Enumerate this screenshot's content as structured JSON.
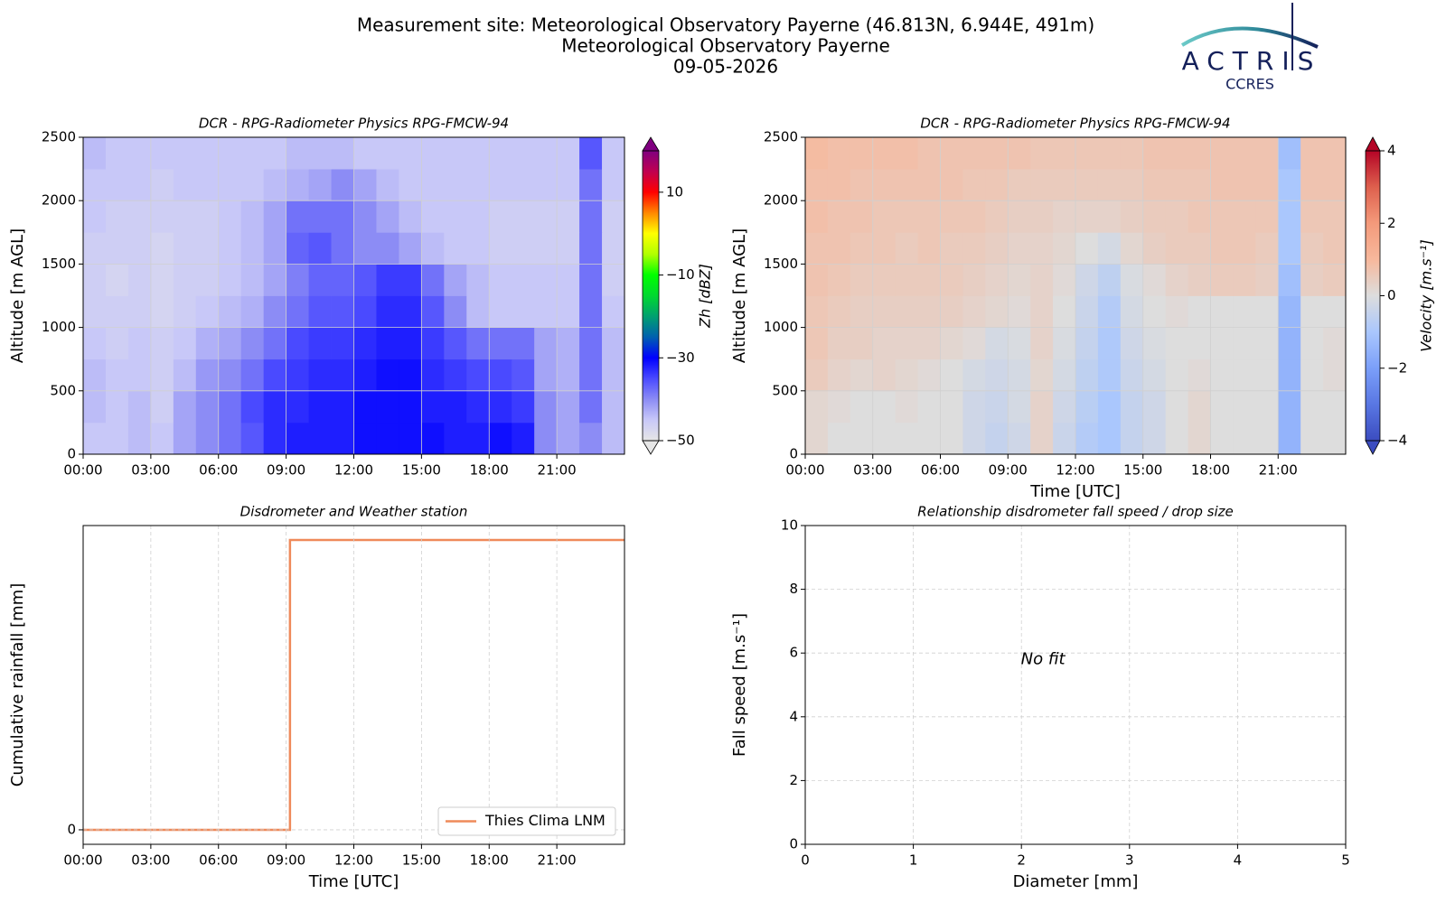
{
  "header": {
    "title": [
      "Measurement site: Meteorological Observatory Payerne (46.813N, 6.944E, 491m)",
      "Meteorological Observatory Payerne",
      "09-05-2026"
    ],
    "logo": "ACTRIS",
    "logo_subtitle": "CCRES"
  },
  "chart_data": [
    {
      "type": "heatmap",
      "title": "DCR - RPG-Radiometer Physics RPG-FMCW-94",
      "ylabel": "Altitude [m AGL]",
      "xlim": [
        0,
        24
      ],
      "xticks": [
        {
          "value": 0,
          "label": "00:00"
        },
        {
          "value": 3,
          "label": "03:00"
        },
        {
          "value": 6,
          "label": "06:00"
        },
        {
          "value": 9,
          "label": "09:00"
        },
        {
          "value": 12,
          "label": "12:00"
        },
        {
          "value": 15,
          "label": "15:00"
        },
        {
          "value": 18,
          "label": "18:00"
        },
        {
          "value": 21,
          "label": "21:00"
        }
      ],
      "ylim": [
        0,
        2500
      ],
      "yticks": [
        0,
        500,
        1000,
        1500,
        2000,
        2500
      ],
      "grid": true,
      "grid_style": "solid",
      "xbins": [
        0,
        1,
        2,
        3,
        4,
        5,
        6,
        7,
        8,
        9,
        10,
        11,
        12,
        13,
        14,
        15,
        16,
        17,
        18,
        19,
        20,
        21,
        22,
        23,
        24
      ],
      "ybins": [
        0,
        250,
        500,
        750,
        1000,
        1250,
        1500,
        1750,
        2000,
        2250,
        2500
      ],
      "z": [
        [
          -45,
          -45,
          -44,
          -45,
          -42,
          -40,
          -38,
          -36,
          -33,
          -32,
          -32,
          -32,
          -31,
          -31,
          -31,
          -31,
          -32,
          -32,
          -31,
          -32,
          -40,
          -42,
          -40,
          -44
        ],
        [
          -44,
          -45,
          -44,
          -46,
          -42,
          -40,
          -38,
          -35,
          -33,
          -33,
          -32,
          -32,
          -31,
          -31,
          -31,
          -32,
          -32,
          -33,
          -33,
          -34,
          -40,
          -42,
          -38,
          -44
        ],
        [
          -44,
          -45,
          -45,
          -46,
          -44,
          -41,
          -40,
          -38,
          -35,
          -34,
          -33,
          -33,
          -32,
          -31,
          -31,
          -33,
          -34,
          -35,
          -35,
          -36,
          -42,
          -43,
          -38,
          -44
        ],
        [
          -45,
          -46,
          -45,
          -46,
          -45,
          -43,
          -42,
          -40,
          -38,
          -35,
          -34,
          -34,
          -33,
          -32,
          -32,
          -34,
          -36,
          -38,
          -38,
          -38,
          -42,
          -43,
          -38,
          -44
        ],
        [
          -46,
          -46,
          -46,
          -47,
          -46,
          -45,
          -44,
          -43,
          -40,
          -38,
          -36,
          -36,
          -35,
          -33,
          -33,
          -36,
          -40,
          -44,
          -45,
          -45,
          -45,
          -45,
          -38,
          -45
        ],
        [
          -46,
          -47,
          -46,
          -47,
          -46,
          -46,
          -45,
          -44,
          -42,
          -39,
          -37,
          -37,
          -36,
          -34,
          -34,
          -38,
          -42,
          -44,
          -45,
          -45,
          -45,
          -45,
          -38,
          -46
        ],
        [
          -46,
          -46,
          -46,
          -47,
          -46,
          -46,
          -45,
          -44,
          -42,
          -37,
          -36,
          -38,
          -40,
          -40,
          -42,
          -44,
          -45,
          -45,
          -46,
          -46,
          -46,
          -46,
          -38,
          -46
        ],
        [
          -45,
          -46,
          -46,
          -46,
          -46,
          -46,
          -45,
          -44,
          -42,
          -38,
          -38,
          -38,
          -40,
          -42,
          -44,
          -45,
          -45,
          -45,
          -46,
          -46,
          -46,
          -46,
          -38,
          -46
        ],
        [
          -45,
          -45,
          -45,
          -46,
          -45,
          -45,
          -45,
          -45,
          -44,
          -43,
          -42,
          -40,
          -42,
          -44,
          -45,
          -45,
          -45,
          -45,
          -45,
          -45,
          -45,
          -45,
          -38,
          -45
        ],
        [
          -44,
          -45,
          -45,
          -45,
          -45,
          -45,
          -45,
          -45,
          -45,
          -44,
          -44,
          -44,
          -45,
          -45,
          -45,
          -45,
          -45,
          -45,
          -45,
          -45,
          -45,
          -45,
          -36,
          -45
        ]
      ],
      "colorbar_label": "Zh [dBZ]",
      "clim": [
        -50,
        20
      ],
      "extend": "both",
      "cticks": [
        {
          "value": 10,
          "label": "10"
        },
        {
          "value": -10,
          "label": "−10"
        },
        {
          "value": -30,
          "label": "−30"
        },
        {
          "value": -50,
          "label": "−50"
        }
      ],
      "colormap": [
        "#e6e6e6",
        "#c8c8f8",
        "#8c8cf5",
        "#4a4aff",
        "#0000ff",
        "#0060b0",
        "#00a070",
        "#00d830",
        "#00ff00",
        "#b0ff00",
        "#ffff00",
        "#ff8800",
        "#ff0000",
        "#c00050",
        "#800080"
      ]
    },
    {
      "type": "heatmap",
      "title": "DCR - RPG-Radiometer Physics RPG-FMCW-94",
      "ylabel": "Altitude [m AGL]",
      "xlabel": "Time [UTC]",
      "xlim": [
        0,
        24
      ],
      "xticks": [
        {
          "value": 0,
          "label": "00:00"
        },
        {
          "value": 3,
          "label": "03:00"
        },
        {
          "value": 6,
          "label": "06:00"
        },
        {
          "value": 9,
          "label": "09:00"
        },
        {
          "value": 12,
          "label": "12:00"
        },
        {
          "value": 15,
          "label": "15:00"
        },
        {
          "value": 18,
          "label": "18:00"
        },
        {
          "value": 21,
          "label": "21:00"
        }
      ],
      "ylim": [
        0,
        2500
      ],
      "yticks": [
        0,
        500,
        1000,
        1500,
        2000,
        2500
      ],
      "grid": true,
      "grid_style": "solid",
      "xbins": [
        0,
        1,
        2,
        3,
        4,
        5,
        6,
        7,
        8,
        9,
        10,
        11,
        12,
        13,
        14,
        15,
        16,
        17,
        18,
        19,
        20,
        21,
        22,
        23,
        24
      ],
      "ybins": [
        0,
        250,
        500,
        750,
        1000,
        1250,
        1500,
        1750,
        2000,
        2250,
        2500
      ],
      "z": [
        [
          0.2,
          0,
          0,
          0,
          0,
          0,
          0,
          -0.3,
          -0.5,
          -0.3,
          0.3,
          -0.4,
          -0.8,
          -1,
          -0.5,
          -0.3,
          0,
          0.2,
          0,
          0,
          0,
          -1.5,
          0,
          0
        ],
        [
          0.2,
          0.1,
          0,
          0,
          0.1,
          0,
          0,
          -0.3,
          -0.4,
          -0.2,
          0.3,
          -0.3,
          -0.7,
          -1,
          -0.5,
          -0.3,
          0,
          0.2,
          0,
          0,
          0,
          -1.5,
          0,
          0
        ],
        [
          0.5,
          0.3,
          0.2,
          0.3,
          0.2,
          0.1,
          0,
          -0.2,
          -0.3,
          -0.2,
          0.2,
          -0.2,
          -0.6,
          -0.9,
          -0.4,
          -0.2,
          0,
          0.1,
          0,
          0,
          0,
          -1.5,
          0,
          0.1
        ],
        [
          0.6,
          0.4,
          0.4,
          0.3,
          0.3,
          0.3,
          0.2,
          0.1,
          -0.2,
          -0.1,
          0.3,
          -0.1,
          -0.5,
          -0.9,
          -0.3,
          -0.1,
          0,
          0,
          0,
          0,
          0,
          -1.5,
          0,
          0.1
        ],
        [
          0.6,
          0.5,
          0.4,
          0.4,
          0.4,
          0.4,
          0.4,
          0.3,
          0.2,
          0.1,
          0.3,
          0,
          -0.4,
          -0.8,
          -0.2,
          0,
          0.1,
          0,
          0,
          0,
          0,
          -1.4,
          0,
          0
        ],
        [
          0.7,
          0.6,
          0.5,
          0.5,
          0.5,
          0.5,
          0.5,
          0.4,
          0.3,
          0.2,
          0.3,
          0.1,
          -0.3,
          -0.6,
          -0.1,
          0.1,
          0.3,
          0.4,
          0.5,
          0.5,
          0.4,
          -1.2,
          0.4,
          0.5
        ],
        [
          0.7,
          0.7,
          0.6,
          0.6,
          0.5,
          0.6,
          0.5,
          0.5,
          0.4,
          0.3,
          0.3,
          0.2,
          0,
          -0.2,
          0.2,
          0.4,
          0.5,
          0.5,
          0.6,
          0.6,
          0.5,
          -1,
          0.5,
          0.6
        ],
        [
          0.8,
          0.7,
          0.7,
          0.6,
          0.6,
          0.6,
          0.6,
          0.6,
          0.5,
          0.4,
          0.4,
          0.3,
          0.3,
          0.3,
          0.4,
          0.5,
          0.5,
          0.6,
          0.6,
          0.6,
          0.6,
          -1,
          0.6,
          0.6
        ],
        [
          0.8,
          0.8,
          0.7,
          0.7,
          0.7,
          0.7,
          0.7,
          0.6,
          0.6,
          0.5,
          0.5,
          0.5,
          0.5,
          0.5,
          0.5,
          0.6,
          0.6,
          0.6,
          0.7,
          0.7,
          0.7,
          -1,
          0.7,
          0.7
        ],
        [
          0.9,
          0.8,
          0.8,
          0.8,
          0.8,
          0.7,
          0.7,
          0.7,
          0.7,
          0.7,
          0.6,
          0.6,
          0.6,
          0.6,
          0.6,
          0.7,
          0.7,
          0.7,
          0.7,
          0.7,
          0.7,
          -1.2,
          0.7,
          0.7
        ]
      ],
      "colorbar_label": "Velocity [m.s⁻¹]",
      "clim": [
        -4,
        4
      ],
      "extend": "both",
      "cticks": [
        {
          "value": 4,
          "label": "4"
        },
        {
          "value": 2,
          "label": "2"
        },
        {
          "value": 0,
          "label": "0"
        },
        {
          "value": -2,
          "label": "−2"
        },
        {
          "value": -4,
          "label": "−4"
        }
      ],
      "colormap": [
        "#3b4cc0",
        "#5977e3",
        "#7b9ff9",
        "#aac7fd",
        "#dddddd",
        "#f7b89c",
        "#f49a7b",
        "#de604d",
        "#b40426"
      ]
    },
    {
      "type": "line",
      "title": "Disdrometer and Weather station",
      "ylabel": "Cumulative rainfall [mm]",
      "xlabel": "Time [UTC]",
      "xlim": [
        0,
        24
      ],
      "xticks": [
        {
          "value": 0,
          "label": "00:00"
        },
        {
          "value": 3,
          "label": "03:00"
        },
        {
          "value": 6,
          "label": "06:00"
        },
        {
          "value": 9,
          "label": "09:00"
        },
        {
          "value": 12,
          "label": "12:00"
        },
        {
          "value": 15,
          "label": "15:00"
        },
        {
          "value": 18,
          "label": "18:00"
        },
        {
          "value": 21,
          "label": "21:00"
        }
      ],
      "ylim": [
        -0.05,
        1.05
      ],
      "yticks": [
        0
      ],
      "grid": true,
      "grid_style": "dashed",
      "legend": "lower right",
      "x": [
        0,
        9.17,
        9.17,
        24
      ],
      "series": [
        {
          "name": "Thies Clima LNM",
          "color": "#ef8a5a",
          "values": [
            0,
            0,
            1,
            1
          ]
        }
      ]
    },
    {
      "type": "scatter",
      "title": "Relationship disdrometer fall speed / drop size",
      "ylabel": "Fall speed [m.s⁻¹]",
      "xlabel": "Diameter [mm]",
      "xlim": [
        0,
        5
      ],
      "xticks": [
        0,
        1,
        2,
        3,
        4,
        5
      ],
      "ylim": [
        0,
        10
      ],
      "yticks": [
        0,
        2,
        4,
        6,
        8,
        10
      ],
      "grid": true,
      "grid_style": "dashed",
      "annotation": "No fit"
    }
  ]
}
